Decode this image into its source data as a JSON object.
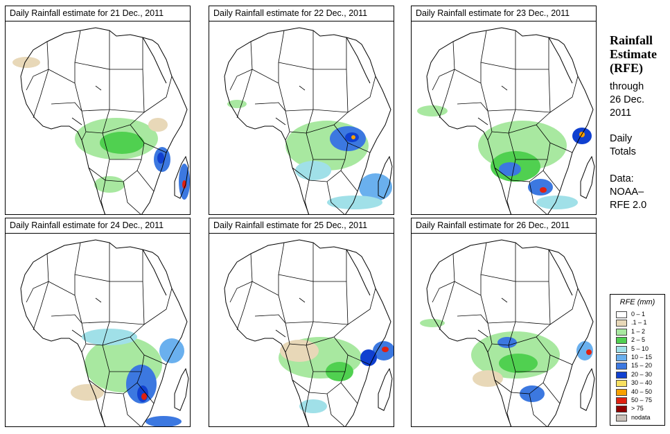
{
  "panels": [
    {
      "title": "Daily Rainfall estimate for  21 Dec., 2011",
      "pattern": "d21"
    },
    {
      "title": "Daily Rainfall estimate for  22 Dec., 2011",
      "pattern": "d22"
    },
    {
      "title": "Daily Rainfall estimate for  23 Dec., 2011",
      "pattern": "d23"
    },
    {
      "title": "Daily Rainfall estimate for  24 Dec., 2011",
      "pattern": "d24"
    },
    {
      "title": "Daily Rainfall estimate for  25 Dec., 2011",
      "pattern": "d25"
    },
    {
      "title": "Daily Rainfall estimate for  26 Dec., 2011",
      "pattern": "d26"
    }
  ],
  "sidebar": {
    "heading_line1": "Rainfall",
    "heading_line2": "Estimate",
    "heading_line3": "(RFE)",
    "through_label": "through",
    "through_date": "26 Dec.",
    "through_year": "2011",
    "totals_line1": "Daily",
    "totals_line2": "Totals",
    "source_line1": "Data:",
    "source_line2": "NOAA–",
    "source_line3": "RFE 2.0"
  },
  "legend": {
    "title": "RFE (mm)",
    "items": [
      {
        "label": "0 – 1",
        "color": "#ffffff"
      },
      {
        "label": ".1 – 1",
        "color": "#e8d8b8"
      },
      {
        "label": "1 – 2",
        "color": "#a8e8a0"
      },
      {
        "label": "2 – 5",
        "color": "#50d050"
      },
      {
        "label": "5 – 10",
        "color": "#a0e0e8"
      },
      {
        "label": "10 – 15",
        "color": "#6ab0ee"
      },
      {
        "label": "15 – 20",
        "color": "#3c78e0"
      },
      {
        "label": "20 – 30",
        "color": "#1040d0"
      },
      {
        "label": "30 – 40",
        "color": "#f8e060"
      },
      {
        "label": "40 – 50",
        "color": "#f8a000"
      },
      {
        "label": "50 – 75",
        "color": "#e02010"
      },
      {
        "label": "> 75",
        "color": "#900000"
      },
      {
        "label": "nodata",
        "color": "#c8c0b8"
      }
    ]
  },
  "colors": {
    "border": "#000000",
    "rain_light": "#e8d8b8",
    "rain_green_light": "#a8e8a0",
    "rain_green": "#50d050",
    "rain_cyan": "#a0e0e8",
    "rain_blue": "#3c78e0",
    "rain_darkblue": "#1040d0",
    "rain_orange": "#f8a000",
    "rain_red": "#e02010"
  }
}
